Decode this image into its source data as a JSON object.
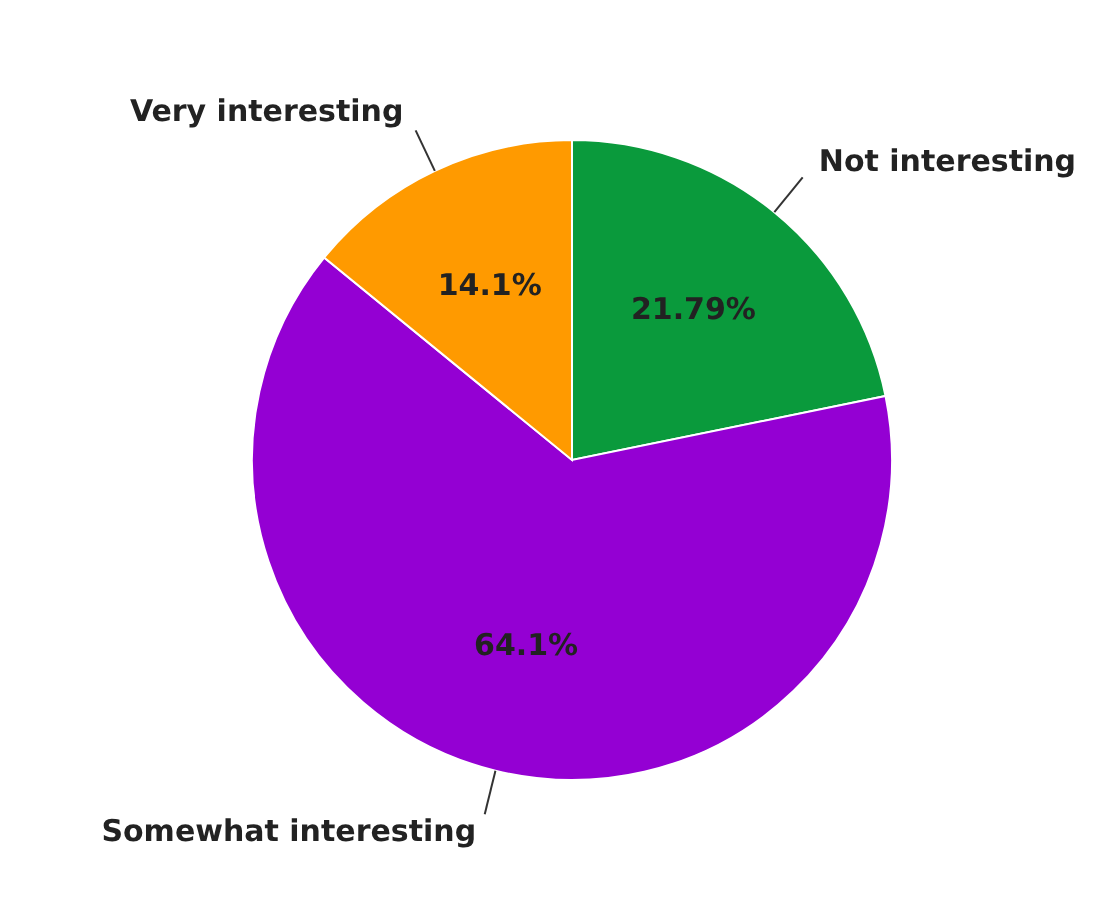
{
  "chart_data": {
    "type": "pie",
    "categories": [
      "Not interesting",
      "Somewhat interesting",
      "Very interesting"
    ],
    "values": [
      21.79,
      64.1,
      14.1
    ],
    "colors": [
      "#0a9a3c",
      "#9400d3",
      "#ff9a00"
    ],
    "value_labels": [
      "21.79%",
      "64.1%",
      "14.1%"
    ]
  }
}
